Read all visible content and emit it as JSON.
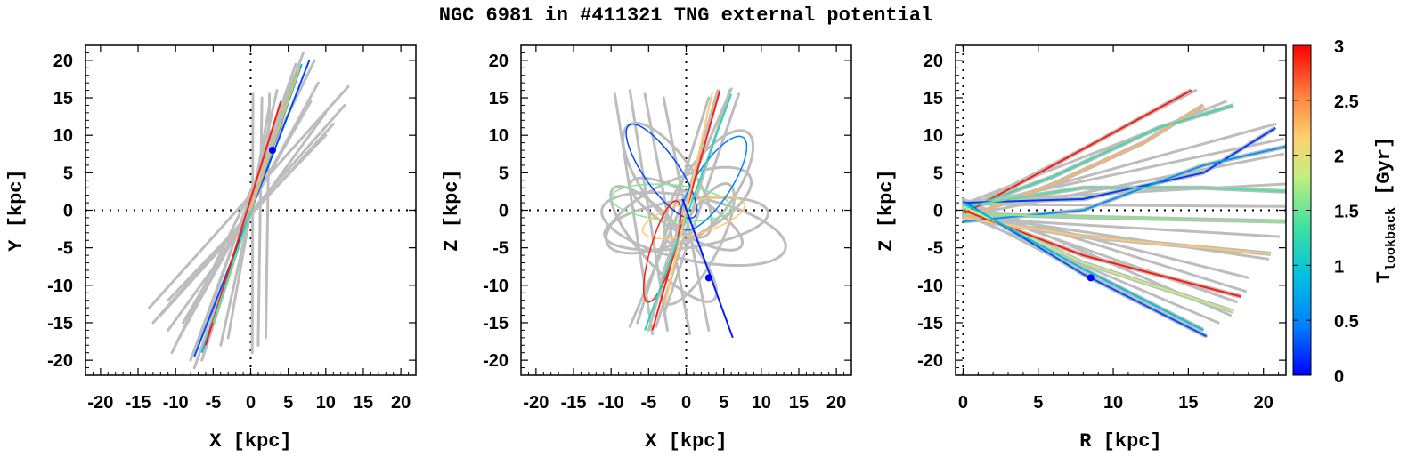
{
  "figure": {
    "title": "NGC 6981 in #411321 TNG external potential"
  },
  "colorbar": {
    "label_main": "T",
    "label_sub": "lookback",
    "label_unit": "[Gyr]",
    "range": [
      0,
      3
    ],
    "tick_labels": [
      "0",
      "0.5",
      "1",
      "1.5",
      "2",
      "2.5",
      "3"
    ],
    "colors": [
      "#0000ff",
      "#0080ff",
      "#00c0e0",
      "#40e0a0",
      "#c0f080",
      "#ffd070",
      "#ff8040",
      "#ff0000"
    ]
  },
  "chart_data": [
    {
      "type": "line",
      "id": "xy",
      "xlabel": "X [kpc]",
      "ylabel": "Y [kpc]",
      "xlim": [
        -22,
        22
      ],
      "ylim": [
        -22,
        22
      ],
      "x_tick_labels": [
        "-20",
        "-15",
        "-10",
        "-5",
        "0",
        "5",
        "10",
        "15",
        "20"
      ],
      "y_tick_labels": [
        "-20",
        "-15",
        "-10",
        "-5",
        "0",
        "5",
        "10",
        "15",
        "20"
      ],
      "zero_lines": true,
      "gray_lines": [
        [
          [
            -13.5,
            -13
          ],
          [
            13,
            16.5
          ]
        ],
        [
          [
            -12,
            -14
          ],
          [
            11,
            11.5
          ]
        ],
        [
          [
            -11,
            -16
          ],
          [
            10,
            13
          ]
        ],
        [
          [
            -9.5,
            -17
          ],
          [
            9,
            17
          ]
        ],
        [
          [
            -10.5,
            -19
          ],
          [
            8.5,
            20
          ]
        ],
        [
          [
            -8,
            -20
          ],
          [
            7,
            21
          ]
        ],
        [
          [
            -7.5,
            -21
          ],
          [
            6.5,
            19
          ]
        ],
        [
          [
            -6.5,
            -20
          ],
          [
            5.8,
            18
          ]
        ],
        [
          [
            -11,
            -12
          ],
          [
            10,
            10
          ]
        ],
        [
          [
            -9,
            -15
          ],
          [
            8,
            14.5
          ]
        ],
        [
          [
            -4,
            -18
          ],
          [
            3.5,
            16
          ]
        ],
        [
          [
            -5,
            -14
          ],
          [
            4.5,
            13
          ]
        ],
        [
          [
            0.2,
            -19
          ],
          [
            0.3,
            15.5
          ]
        ],
        [
          [
            1,
            -18
          ],
          [
            1.5,
            15
          ]
        ],
        [
          [
            2,
            -17
          ],
          [
            2.5,
            15.5
          ]
        ],
        [
          [
            -13,
            -15
          ],
          [
            12.5,
            14
          ]
        ],
        [
          [
            -7,
            -18
          ],
          [
            6,
            19.5
          ]
        ],
        [
          [
            -3,
            -17
          ],
          [
            2.5,
            14
          ]
        ]
      ],
      "colored_lines": [
        {
          "points": [
            [
              -7.5,
              -19.5
            ],
            [
              7.8,
              20
            ]
          ],
          "t": 0.25
        },
        {
          "points": [
            [
              -6.5,
              -19
            ],
            [
              6.8,
              19.5
            ]
          ],
          "t": 0.8
        },
        {
          "points": [
            [
              -6,
              -18
            ],
            [
              4,
              14.5
            ]
          ],
          "t": 2.9
        },
        {
          "points": [
            [
              -5,
              -15
            ],
            [
              6.2,
              18.5
            ]
          ],
          "t": 1.4
        },
        {
          "points": [
            [
              0,
              0
            ],
            [
              6.5,
              19
            ]
          ],
          "t": 2.3
        }
      ],
      "closed_curves": [],
      "current_position": [
        2.9,
        8.0
      ]
    },
    {
      "type": "line",
      "id": "xz",
      "xlabel": "X [kpc]",
      "ylabel": "Z [kpc]",
      "xlim": [
        -22,
        22
      ],
      "ylim": [
        -22,
        22
      ],
      "x_tick_labels": [
        "-20",
        "-15",
        "-10",
        "-5",
        "0",
        "5",
        "10",
        "15",
        "20"
      ],
      "y_tick_labels": [
        "-20",
        "-15",
        "-10",
        "-5",
        "0",
        "5",
        "10",
        "15",
        "20"
      ],
      "zero_lines": true,
      "gray_lines": [
        [
          [
            -9.5,
            15.5
          ],
          [
            -4.5,
            -16.5
          ]
        ],
        [
          [
            -7.5,
            16
          ],
          [
            -2.5,
            -16
          ]
        ],
        [
          [
            -5.5,
            15.5
          ],
          [
            0.5,
            -16.5
          ]
        ],
        [
          [
            4.2,
            16
          ],
          [
            -5,
            -16
          ]
        ],
        [
          [
            5.8,
            16
          ],
          [
            -4,
            -15.5
          ]
        ],
        [
          [
            7,
            15.5
          ],
          [
            -3,
            -14
          ]
        ],
        [
          [
            3,
            15
          ],
          [
            -6.5,
            -15
          ]
        ],
        [
          [
            -3,
            15
          ],
          [
            3,
            -16
          ]
        ],
        [
          [
            6,
            16.2
          ],
          [
            -7.5,
            -15.5
          ]
        ]
      ],
      "colored_lines": [
        {
          "points": [
            [
              4.5,
              16
            ],
            [
              -4.5,
              -16
            ]
          ],
          "t": 2.9
        },
        {
          "points": [
            [
              6,
              15.5
            ],
            [
              -5.5,
              -16
            ]
          ],
          "t": 1.2
        },
        {
          "points": [
            [
              3.5,
              15.8
            ],
            [
              -2.8,
              -12.5
            ]
          ],
          "t": 2.2
        },
        {
          "points": [
            [
              -0.5,
              1.5
            ],
            [
              6.2,
              -17
            ]
          ],
          "t": 0.1
        }
      ],
      "closed_curves": [
        {
          "cx": 0,
          "cy": -1.8,
          "rx": 11,
          "ry": 3.2,
          "rot": 8,
          "t": null
        },
        {
          "cx": 1,
          "cy": -2.5,
          "rx": 12.5,
          "ry": 4.2,
          "rot": -12,
          "t": null
        },
        {
          "cx": -1,
          "cy": 0,
          "rx": 10.5,
          "ry": 4.0,
          "rot": 25,
          "t": null
        },
        {
          "cx": 0,
          "cy": -0.5,
          "rx": 8.5,
          "ry": 2.6,
          "rot": -30,
          "t": null
        },
        {
          "cx": -2.5,
          "cy": 4,
          "rx": 9,
          "ry": 3.5,
          "rot": -55,
          "t": null
        },
        {
          "cx": 3,
          "cy": 3,
          "rx": 9,
          "ry": 3.5,
          "rot": 55,
          "t": null
        },
        {
          "cx": 1.5,
          "cy": -4.5,
          "rx": 9,
          "ry": 2.8,
          "rot": 62,
          "t": null
        },
        {
          "cx": -3,
          "cy": -4.5,
          "rx": 10,
          "ry": 3,
          "rot": -48,
          "t": null
        },
        {
          "cx": -2,
          "cy": 1,
          "rx": 8,
          "ry": 2.4,
          "rot": -5,
          "t": 1.6
        },
        {
          "cx": 1,
          "cy": -1,
          "rx": 7,
          "ry": 2.2,
          "rot": 15,
          "t": 2.2
        },
        {
          "cx": -3.3,
          "cy": 5.2,
          "rx": 7.5,
          "ry": 2.3,
          "rot": -55,
          "t": 0.25
        },
        {
          "cx": 3.6,
          "cy": 3.6,
          "rx": 7.3,
          "ry": 2.4,
          "rot": 57,
          "t": 0.45
        },
        {
          "cx": -3.2,
          "cy": -5.5,
          "rx": 7,
          "ry": 1.6,
          "rot": 74,
          "t": 2.9
        }
      ],
      "current_position": [
        3.0,
        -9.0
      ]
    },
    {
      "type": "line",
      "id": "rz",
      "xlabel": "R [kpc]",
      "ylabel": "Z [kpc]",
      "xlim": [
        -0.5,
        21.5
      ],
      "ylim": [
        -22,
        22
      ],
      "x_tick_labels": [
        "0",
        "5",
        "10",
        "15",
        "20"
      ],
      "y_tick_labels": [
        "-20",
        "-15",
        "-10",
        "-5",
        "0",
        "5",
        "10",
        "15",
        "20"
      ],
      "zero_lines": true,
      "gray_lines": [
        [
          [
            0,
            0
          ],
          [
            15.5,
            16
          ]
        ],
        [
          [
            0,
            0.8
          ],
          [
            17.5,
            14.5
          ]
        ],
        [
          [
            0,
            0
          ],
          [
            20.8,
            11.5
          ]
        ],
        [
          [
            0,
            0.5
          ],
          [
            21.3,
            9.5
          ]
        ],
        [
          [
            0,
            -0.8
          ],
          [
            21.3,
            7.5
          ]
        ],
        [
          [
            0,
            1.2
          ],
          [
            21.5,
            3.5
          ]
        ],
        [
          [
            0,
            0.8
          ],
          [
            21.5,
            0.5
          ]
        ],
        [
          [
            0,
            -1
          ],
          [
            21,
            -3.5
          ]
        ],
        [
          [
            0,
            -0.5
          ],
          [
            20.3,
            -6.5
          ]
        ],
        [
          [
            0,
            1
          ],
          [
            18.8,
            -10.8
          ]
        ],
        [
          [
            0,
            0.5
          ],
          [
            18.2,
            -12.2
          ]
        ],
        [
          [
            0,
            1.5
          ],
          [
            17.8,
            -14
          ]
        ],
        [
          [
            0,
            0
          ],
          [
            16.2,
            -16.8
          ]
        ],
        [
          [
            0,
            0.5
          ],
          [
            19,
            -9
          ]
        ],
        [
          [
            0,
            -0.5
          ],
          [
            17,
            -15
          ]
        ]
      ],
      "colored_lines": [],
      "closed_curves": [],
      "polyline_curves": [
        {
          "points": [
            [
              0,
              -0.5
            ],
            [
              6,
              6
            ],
            [
              12,
              12.5
            ],
            [
              15.2,
              16
            ]
          ],
          "t": 2.9
        },
        {
          "points": [
            [
              0,
              -1.2
            ],
            [
              6,
              3.5
            ],
            [
              12,
              9
            ],
            [
              16,
              14
            ]
          ],
          "t": 2.3
        },
        {
          "points": [
            [
              0,
              0
            ],
            [
              6,
              4.5
            ],
            [
              13,
              11
            ],
            [
              18,
              14
            ]
          ],
          "t": 1.3
        },
        {
          "points": [
            [
              0,
              1
            ],
            [
              8,
              1.5
            ],
            [
              16,
              5
            ],
            [
              20.8,
              11
            ]
          ],
          "t": 0.2
        },
        {
          "points": [
            [
              0,
              -1.5
            ],
            [
              8,
              0
            ],
            [
              16,
              6
            ],
            [
              21.5,
              8.5
            ]
          ],
          "t": 0.6
        },
        {
          "points": [
            [
              0,
              0.5
            ],
            [
              8,
              3
            ],
            [
              16,
              3
            ],
            [
              21.5,
              2.5
            ]
          ],
          "t": 1.4
        },
        {
          "points": [
            [
              0,
              -0.5
            ],
            [
              10,
              -1
            ],
            [
              21.5,
              -1.5
            ]
          ],
          "t": 1.6
        },
        {
          "points": [
            [
              0,
              -1
            ],
            [
              8,
              -3.5
            ],
            [
              20.5,
              -5.8
            ]
          ],
          "t": 2.2
        },
        {
          "points": [
            [
              0,
              0
            ],
            [
              8,
              -6
            ],
            [
              18.5,
              -11.5
            ]
          ],
          "t": 2.9
        },
        {
          "points": [
            [
              0,
              0.5
            ],
            [
              8,
              -7
            ],
            [
              18,
              -13.5
            ]
          ],
          "t": 1.8
        },
        {
          "points": [
            [
              0,
              1.2
            ],
            [
              8,
              -8.5
            ],
            [
              16.2,
              -16.8
            ]
          ],
          "t": 0.3
        },
        {
          "points": [
            [
              0,
              1
            ],
            [
              8,
              -7.8
            ],
            [
              16,
              -16
            ]
          ],
          "t": 0.9
        }
      ],
      "current_position": [
        8.5,
        -9.0
      ]
    }
  ]
}
